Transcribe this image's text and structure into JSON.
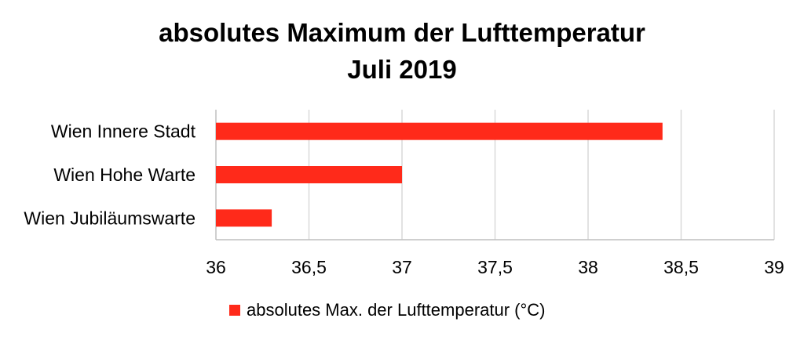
{
  "chart_data": {
    "type": "bar",
    "orientation": "horizontal",
    "title": [
      "absolutes Maximum der Lufttemperatur",
      "Juli 2019"
    ],
    "categories": [
      "Wien Innere Stadt",
      "Wien Hohe Warte",
      "Wien Jubiläumswarte"
    ],
    "series": [
      {
        "name": "absolutes Max. der Lufttemperatur (°C)",
        "values": [
          38.4,
          37.0,
          36.3
        ]
      }
    ],
    "xlim": [
      36,
      39
    ],
    "xticks": [
      "36",
      "36,5",
      "37",
      "37,5",
      "38",
      "38,5",
      "39"
    ],
    "xlabel": "",
    "ylabel": "",
    "grid": true,
    "legend": "bottom-center",
    "colors": {
      "bar": "#ff2a1a",
      "grid": "#d9d9d9",
      "axis": "#bfbfbf"
    }
  }
}
